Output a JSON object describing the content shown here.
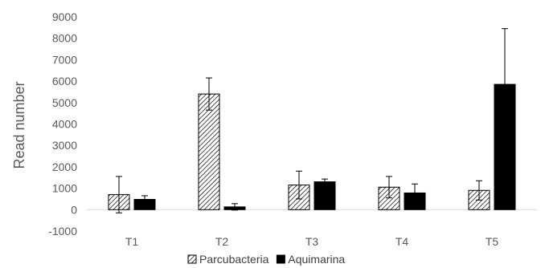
{
  "chart_data": {
    "type": "bar",
    "title": "",
    "xlabel": "",
    "ylabel": "Read number",
    "ylim": [
      -1000,
      9000
    ],
    "ytick_step": 1000,
    "categories": [
      "T1",
      "T2",
      "T3",
      "T4",
      "T5"
    ],
    "series": [
      {
        "name": "Parcubacteria",
        "fill": "hatched",
        "color": "#000000",
        "values": [
          700,
          5400,
          1150,
          1050,
          900
        ],
        "error": [
          850,
          750,
          650,
          500,
          450
        ]
      },
      {
        "name": "Aquimarina",
        "fill": "solid",
        "color": "#000000",
        "values": [
          480,
          130,
          1300,
          780,
          5850
        ],
        "error": [
          170,
          150,
          130,
          420,
          2600
        ]
      }
    ],
    "grid": false,
    "legend_position": "bottom"
  }
}
